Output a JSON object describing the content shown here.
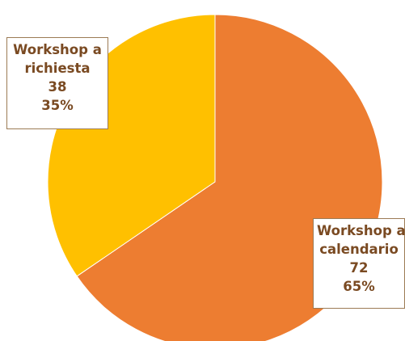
{
  "chart_data": {
    "type": "pie",
    "title": "",
    "slices": [
      {
        "label_lines": [
          "Workshop a",
          "calendario"
        ],
        "value": 72,
        "percent": "65%",
        "color": "#ed7d31"
      },
      {
        "label_lines": [
          "Workshop a",
          "richiesta"
        ],
        "value": 38,
        "percent": "35%",
        "color": "#ffc000"
      }
    ],
    "start_angle_deg": 0,
    "direction": "clockwise",
    "legend": "none"
  }
}
